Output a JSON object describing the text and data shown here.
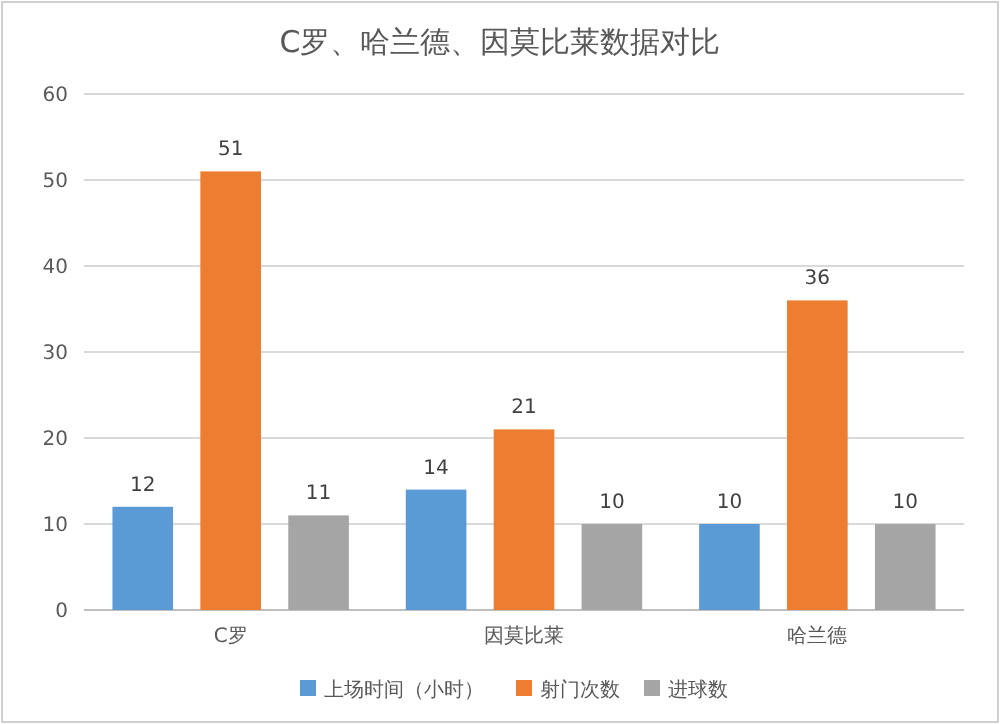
{
  "chart_data": {
    "type": "bar",
    "title": "C罗、哈兰德、因莫比莱数据对比",
    "categories": [
      "C罗",
      "因莫比莱",
      "哈兰德"
    ],
    "series": [
      {
        "name": "上场时间（小时）",
        "color": "#5b9bd5",
        "values": [
          12,
          14,
          10
        ]
      },
      {
        "name": "射门次数",
        "color": "#ed7d31",
        "values": [
          51,
          21,
          36
        ]
      },
      {
        "name": "进球数",
        "color": "#a5a5a5",
        "values": [
          11,
          10,
          10
        ]
      }
    ],
    "ylim": [
      0,
      60
    ],
    "yticks": [
      0,
      10,
      20,
      30,
      40,
      50,
      60
    ],
    "grid": "y",
    "data_labels": true,
    "legend": "bottom"
  }
}
